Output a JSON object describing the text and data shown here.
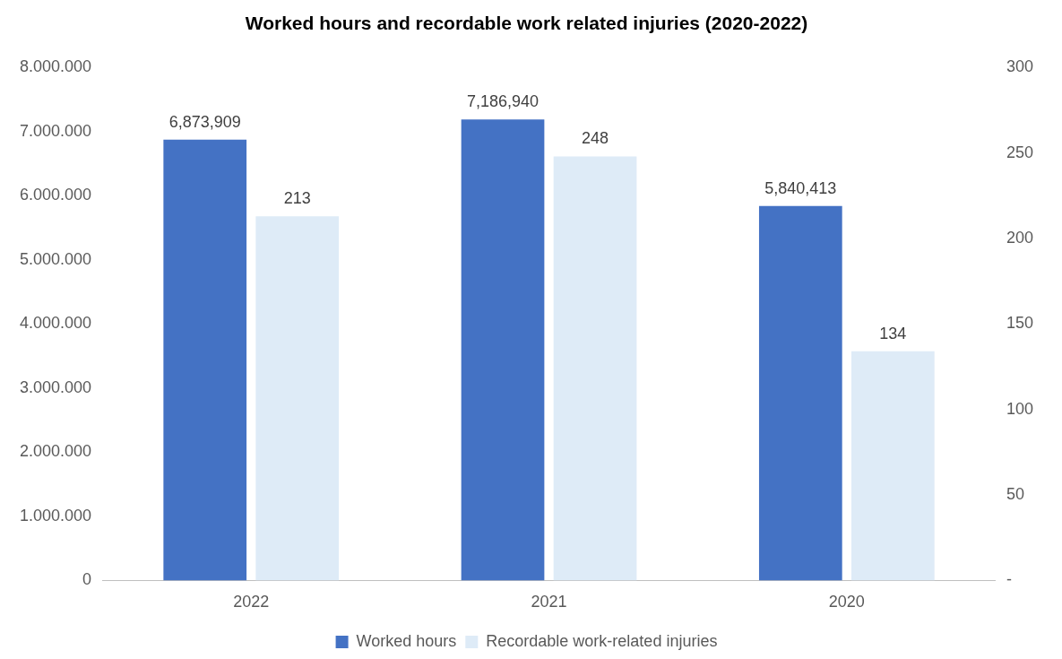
{
  "chart_data": {
    "type": "bar",
    "title": "Worked hours and recordable work related injuries (2020-2022)",
    "categories": [
      "2022",
      "2021",
      "2020"
    ],
    "series": [
      {
        "name": "Worked hours",
        "color": "#4472c4",
        "values": [
          6873909,
          7186940,
          5840413
        ],
        "value_labels": [
          "6,873,909",
          "7,186,940",
          "5,840,413"
        ]
      },
      {
        "name": "Recordable work-related injuries",
        "color": "#deebf7",
        "axis": "y2",
        "values": [
          213,
          248,
          134
        ],
        "value_labels": [
          "213",
          "248",
          "134"
        ]
      }
    ],
    "ylim": [
      0,
      8000000
    ],
    "yticks": [
      {
        "value": 0,
        "label": "0"
      },
      {
        "value": 1000000,
        "label": "1.000.000"
      },
      {
        "value": 2000000,
        "label": "2.000.000"
      },
      {
        "value": 3000000,
        "label": "3.000.000"
      },
      {
        "value": 4000000,
        "label": "4.000.000"
      },
      {
        "value": 5000000,
        "label": "5.000.000"
      },
      {
        "value": 6000000,
        "label": "6.000.000"
      },
      {
        "value": 7000000,
        "label": "7.000.000"
      },
      {
        "value": 8000000,
        "label": "8.000.000"
      }
    ],
    "y2lim": [
      0,
      300
    ],
    "y2ticks": [
      {
        "value": 0,
        "label": "-"
      },
      50,
      100,
      150,
      200,
      250,
      300
    ],
    "grid": false,
    "legend": "bottom"
  }
}
